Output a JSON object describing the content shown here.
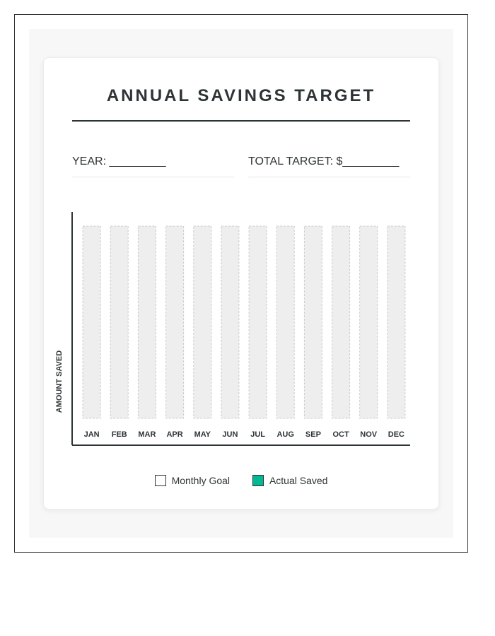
{
  "form": {
    "title": "ANNUAL SAVINGS TARGET",
    "year_label": "YEAR: _________",
    "target_label": "TOTAL TARGET: $_________"
  },
  "legend": {
    "items": [
      {
        "label": "Monthly Goal",
        "color": "#ffffff"
      },
      {
        "label": "Actual Saved",
        "color": "#00b894"
      }
    ]
  },
  "colors": {
    "text": "#2d3436",
    "bar_fill": "#eeeeee",
    "bar_border": "#cccccc",
    "accent": "#00b894"
  },
  "chart_data": {
    "type": "bar",
    "title": "",
    "xlabel": "",
    "ylabel": "AMOUNT SAVED",
    "categories": [
      "JAN",
      "FEB",
      "MAR",
      "APR",
      "MAY",
      "JUN",
      "JUL",
      "AUG",
      "SEP",
      "OCT",
      "NOV",
      "DEC"
    ],
    "series": [
      {
        "name": "Monthly Goal",
        "values": [
          null,
          null,
          null,
          null,
          null,
          null,
          null,
          null,
          null,
          null,
          null,
          null
        ]
      },
      {
        "name": "Actual Saved",
        "values": [
          null,
          null,
          null,
          null,
          null,
          null,
          null,
          null,
          null,
          null,
          null,
          null
        ]
      }
    ],
    "grid": false,
    "legend_position": "bottom"
  }
}
